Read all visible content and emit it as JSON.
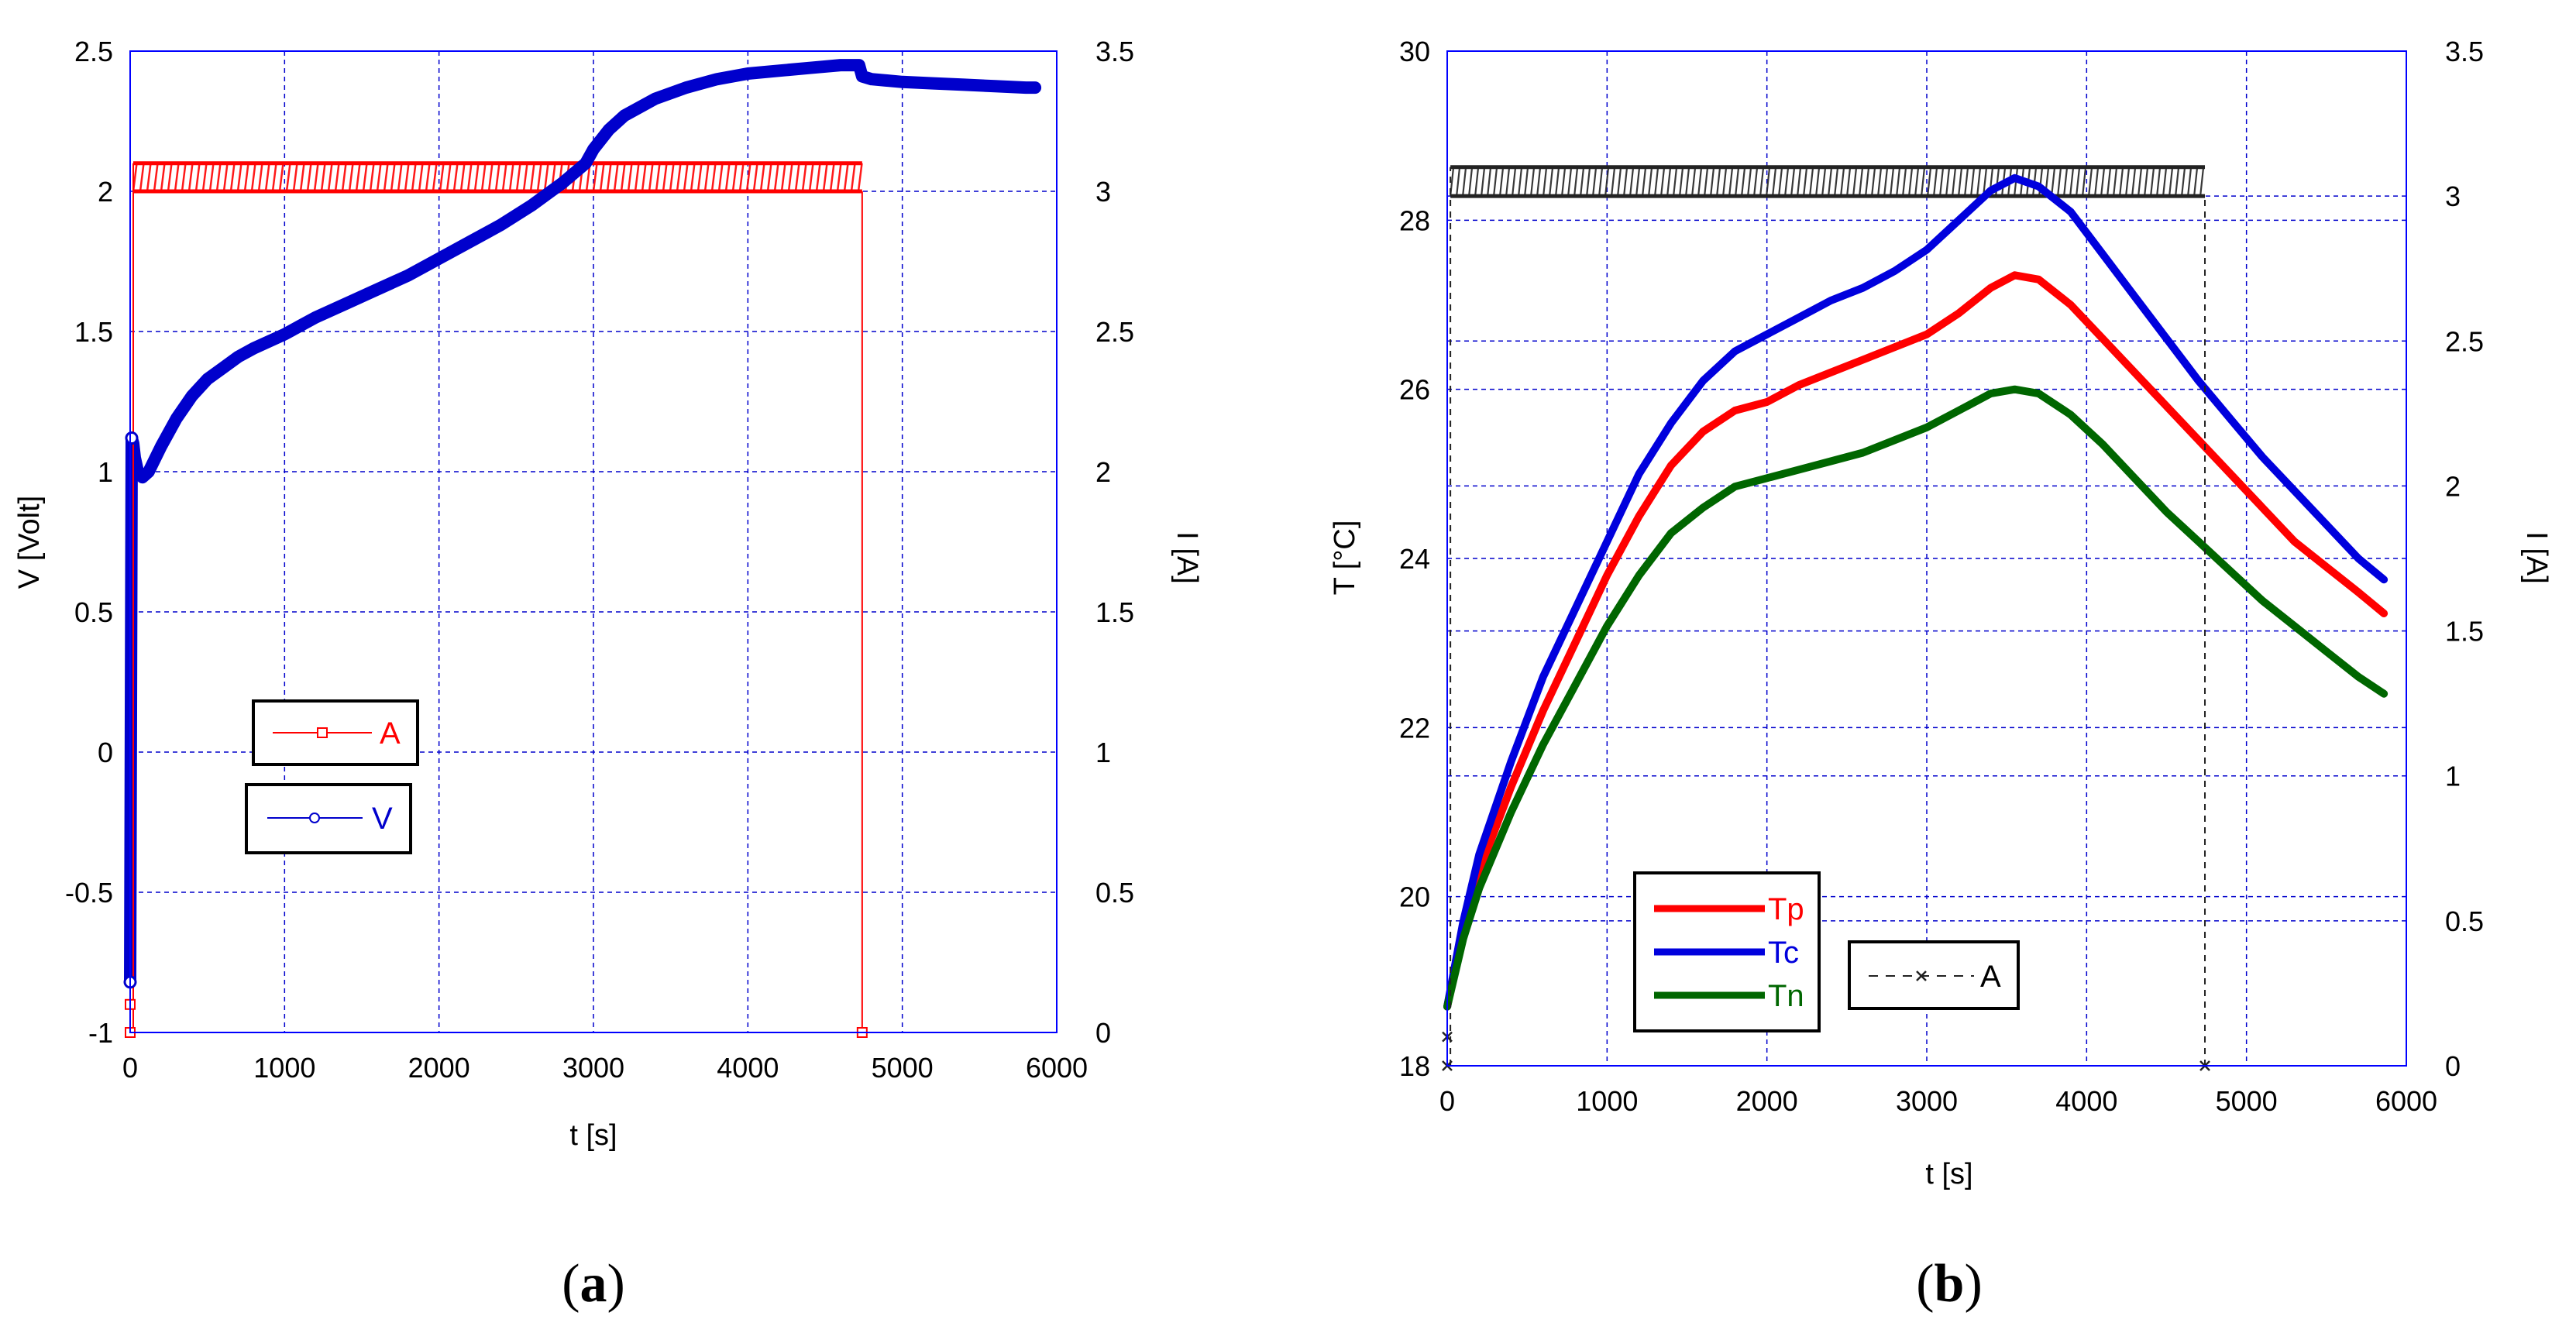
{
  "colors": {
    "A_a": "#ff0000",
    "V": "#0000cc",
    "Tp": "#ff0000",
    "Tc": "#0000dd",
    "Tn": "#006600",
    "A_b": "#222222",
    "grid": "#0000cc",
    "frame": "#0000ff"
  },
  "chart_data": [
    {
      "type": "line",
      "panel_label_open": "(",
      "panel_label_letter": "a",
      "panel_label_close": ")",
      "xlabel": "t [s]",
      "ylabel": "V [Volt]",
      "y2label": "I [A]",
      "xlim": [
        0,
        6000
      ],
      "ylim": [
        -1,
        2.5
      ],
      "y2lim": [
        0,
        3.5
      ],
      "xticks": [
        "0",
        "1000",
        "2000",
        "3000",
        "4000",
        "5000",
        "6000"
      ],
      "yticks": [
        "-1",
        "-0.5",
        "0",
        "0.5",
        "1",
        "1.5",
        "2",
        "2.5"
      ],
      "y2ticks": [
        "0",
        "0.5",
        "1",
        "1.5",
        "2",
        "2.5",
        "3",
        "3.5"
      ],
      "grid": true,
      "legend": [
        {
          "label": "A",
          "series": "A",
          "axis": "right",
          "marker": "square"
        },
        {
          "label": "V",
          "series": "V",
          "axis": "left",
          "marker": "circle"
        }
      ],
      "series": [
        {
          "name": "V",
          "axis": "left",
          "x": [
            0,
            10,
            20,
            30,
            50,
            80,
            120,
            200,
            300,
            400,
            500,
            600,
            700,
            800,
            1000,
            1200,
            1400,
            1600,
            1800,
            2000,
            2200,
            2400,
            2600,
            2800,
            2950,
            3000,
            3100,
            3200,
            3400,
            3600,
            3800,
            4000,
            4200,
            4400,
            4600,
            4720,
            4740,
            4800,
            5000,
            5200,
            5400,
            5600,
            5800,
            5860
          ],
          "y": [
            -0.82,
            1.12,
            1.1,
            1.05,
            1.0,
            0.98,
            1.0,
            1.09,
            1.19,
            1.27,
            1.33,
            1.37,
            1.41,
            1.44,
            1.49,
            1.55,
            1.6,
            1.65,
            1.7,
            1.76,
            1.82,
            1.88,
            1.95,
            2.03,
            2.1,
            2.15,
            2.22,
            2.27,
            2.33,
            2.37,
            2.4,
            2.42,
            2.43,
            2.44,
            2.45,
            2.45,
            2.41,
            2.4,
            2.39,
            2.385,
            2.38,
            2.375,
            2.37,
            2.37
          ]
        },
        {
          "name": "A",
          "axis": "right",
          "x": [
            0,
            20,
            20,
            4740,
            4740
          ],
          "y": [
            0,
            0,
            3.05,
            3.05,
            0
          ],
          "band": [
            3.0,
            3.1
          ]
        }
      ]
    },
    {
      "type": "line",
      "panel_label_open": "(",
      "panel_label_letter": "b",
      "panel_label_close": ")",
      "xlabel": "t [s]",
      "ylabel": "T [°C]",
      "y2label": "I [A]",
      "xlim": [
        0,
        6000
      ],
      "ylim": [
        18,
        30
      ],
      "y2lim": [
        0,
        3.5
      ],
      "xticks": [
        "0",
        "1000",
        "2000",
        "3000",
        "4000",
        "5000",
        "6000"
      ],
      "yticks": [
        "18",
        "20",
        "22",
        "24",
        "26",
        "28",
        "30"
      ],
      "y2ticks": [
        "0",
        "0.5",
        "1",
        "1.5",
        "2",
        "2.5",
        "3",
        "3.5"
      ],
      "grid": true,
      "legend": [
        {
          "label": "Tp",
          "series": "Tp",
          "axis": "left"
        },
        {
          "label": "Tc",
          "series": "Tc",
          "axis": "left"
        },
        {
          "label": "Tn",
          "series": "Tn",
          "axis": "left"
        },
        {
          "label": "A",
          "series": "A",
          "axis": "right",
          "marker": "x"
        }
      ],
      "series": [
        {
          "name": "Tp",
          "axis": "left",
          "x": [
            0,
            100,
            200,
            400,
            600,
            800,
            1000,
            1200,
            1400,
            1600,
            1800,
            2000,
            2200,
            2400,
            2600,
            2800,
            3000,
            3200,
            3400,
            3550,
            3700,
            3900,
            4100,
            4300,
            4500,
            4700,
            4900,
            5100,
            5300,
            5500,
            5700,
            5860
          ],
          "y": [
            18.7,
            19.6,
            20.3,
            21.3,
            22.2,
            23.0,
            23.8,
            24.5,
            25.1,
            25.5,
            25.75,
            25.85,
            26.05,
            26.2,
            26.35,
            26.5,
            26.65,
            26.9,
            27.2,
            27.35,
            27.3,
            27.0,
            26.6,
            26.2,
            25.8,
            25.4,
            25.0,
            24.6,
            24.2,
            23.9,
            23.6,
            23.35
          ]
        },
        {
          "name": "Tc",
          "axis": "left",
          "x": [
            0,
            100,
            200,
            400,
            600,
            800,
            1000,
            1200,
            1400,
            1600,
            1800,
            2000,
            2200,
            2400,
            2600,
            2800,
            3000,
            3200,
            3400,
            3550,
            3700,
            3900,
            4100,
            4300,
            4500,
            4700,
            4900,
            5100,
            5300,
            5500,
            5700,
            5860
          ],
          "y": [
            18.7,
            19.7,
            20.5,
            21.6,
            22.6,
            23.4,
            24.2,
            25.0,
            25.6,
            26.1,
            26.45,
            26.65,
            26.85,
            27.05,
            27.2,
            27.4,
            27.65,
            28.0,
            28.35,
            28.5,
            28.4,
            28.1,
            27.6,
            27.1,
            26.6,
            26.1,
            25.65,
            25.2,
            24.8,
            24.4,
            24.0,
            23.75
          ]
        },
        {
          "name": "Tn",
          "axis": "left",
          "x": [
            0,
            100,
            200,
            400,
            600,
            800,
            1000,
            1200,
            1400,
            1600,
            1800,
            2000,
            2200,
            2400,
            2600,
            2800,
            3000,
            3200,
            3400,
            3550,
            3700,
            3900,
            4100,
            4300,
            4500,
            4700,
            4900,
            5100,
            5300,
            5500,
            5700,
            5860
          ],
          "y": [
            18.7,
            19.5,
            20.1,
            21.0,
            21.8,
            22.5,
            23.2,
            23.8,
            24.3,
            24.6,
            24.85,
            24.95,
            25.05,
            25.15,
            25.25,
            25.4,
            25.55,
            25.75,
            25.95,
            26.0,
            25.95,
            25.7,
            25.35,
            24.95,
            24.55,
            24.2,
            23.85,
            23.5,
            23.2,
            22.9,
            22.6,
            22.4
          ]
        },
        {
          "name": "A",
          "axis": "right",
          "x": [
            0,
            20,
            20,
            4740,
            4740
          ],
          "y": [
            0,
            0,
            3.05,
            3.05,
            0
          ],
          "band": [
            3.0,
            3.1
          ],
          "extra_points": [
            [
              0,
              0.1
            ]
          ]
        }
      ]
    }
  ]
}
